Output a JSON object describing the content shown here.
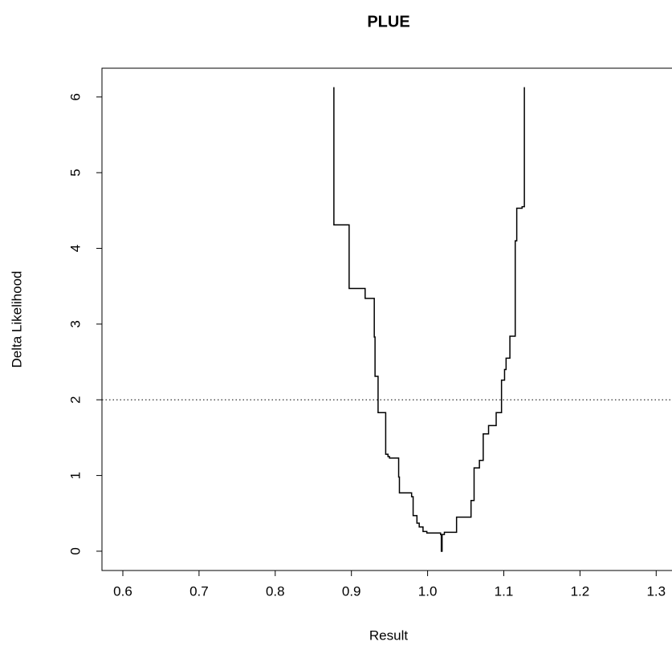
{
  "chart_data": {
    "type": "line",
    "title": "PLUE",
    "xlabel": "Result",
    "ylabel": "Delta Likelihood",
    "x": [
      0.877,
      0.877,
      0.897,
      0.897,
      0.918,
      0.918,
      0.93,
      0.93,
      0.931,
      0.931,
      0.935,
      0.935,
      0.945,
      0.945,
      0.948,
      0.948,
      0.95,
      0.95,
      0.962,
      0.962,
      0.963,
      0.963,
      0.979,
      0.979,
      0.981,
      0.981,
      0.986,
      0.986,
      0.989,
      0.989,
      0.994,
      0.994,
      0.999,
      0.999,
      1.017,
      1.017,
      1.018,
      1.018,
      1.019,
      1.019,
      1.022,
      1.022,
      1.038,
      1.038,
      1.057,
      1.057,
      1.061,
      1.061,
      1.068,
      1.068,
      1.073,
      1.073,
      1.08,
      1.08,
      1.09,
      1.09,
      1.097,
      1.097,
      1.101,
      1.101,
      1.103,
      1.103,
      1.108,
      1.108,
      1.115,
      1.115,
      1.117,
      1.117,
      1.124,
      1.124,
      1.127,
      1.127
    ],
    "values": [
      6.13,
      4.31,
      4.31,
      3.47,
      3.47,
      3.34,
      3.34,
      2.83,
      2.83,
      2.31,
      2.31,
      1.83,
      1.83,
      1.28,
      1.28,
      1.25,
      1.25,
      1.23,
      1.23,
      0.98,
      0.98,
      0.77,
      0.77,
      0.72,
      0.72,
      0.47,
      0.47,
      0.37,
      0.37,
      0.32,
      0.32,
      0.26,
      0.26,
      0.24,
      0.24,
      0.22,
      0.22,
      0.0,
      0.0,
      0.22,
      0.22,
      0.25,
      0.25,
      0.45,
      0.45,
      0.67,
      0.67,
      1.1,
      1.1,
      1.2,
      1.2,
      1.55,
      1.55,
      1.66,
      1.66,
      1.83,
      1.83,
      2.26,
      2.26,
      2.4,
      2.4,
      2.55,
      2.55,
      2.84,
      2.84,
      4.1,
      4.1,
      4.53,
      4.53,
      4.55,
      4.55,
      6.13
    ],
    "color": "#000000",
    "hline": 2,
    "xlim": [
      0.5726,
      1.345
    ],
    "xticks": [
      0.6,
      0.7,
      0.8,
      0.9,
      {
        "value": 1,
        "label": "1.0"
      },
      1.1,
      1.2,
      1.3
    ],
    "ylim": [
      -0.255,
      6.38
    ],
    "yticks": [
      0,
      1,
      2,
      3,
      4,
      5,
      6
    ]
  }
}
